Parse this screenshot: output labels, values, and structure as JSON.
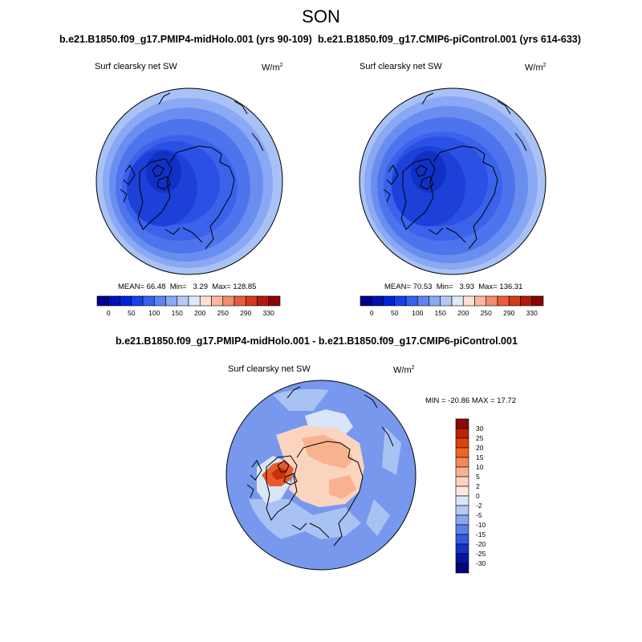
{
  "season": "SON",
  "panels": [
    {
      "run": "b.e21.B1850.f09_g17.PMIP4-midHolo.001 (yrs 90-109)",
      "variable": "Surf clearsky net SW",
      "units": "W/m",
      "units_exp": "2",
      "stats": {
        "mean_label": "MEAN=",
        "mean": "66.48",
        "min_label": "Min=",
        "min": "3.29",
        "max_label": "Max=",
        "max": "128.85"
      }
    },
    {
      "run": "b.e21.B1850.f09_g17.CMIP6-piControl.001 (yrs 614-633)",
      "variable": "Surf clearsky net SW",
      "units": "W/m",
      "units_exp": "2",
      "stats": {
        "mean_label": "MEAN=",
        "mean": "70.53",
        "min_label": "Min=",
        "min": "3.93",
        "max_label": "Max=",
        "max": "136.31"
      }
    }
  ],
  "abs_colorbar": {
    "labels": [
      "0",
      "50",
      "100",
      "150",
      "200",
      "250",
      "290",
      "330"
    ],
    "colors": [
      "#00008c",
      "#0010b4",
      "#0022d6",
      "#1640e8",
      "#3760f0",
      "#5e84f2",
      "#8aa8f4",
      "#b4c9f6",
      "#deeaf8",
      "#fde0d2",
      "#f9b8a0",
      "#f28c6c",
      "#e85e3c",
      "#d23a1c",
      "#b01c0c",
      "#8a0404"
    ]
  },
  "difference": {
    "title": "b.e21.B1850.f09_g17.PMIP4-midHolo.001 - b.e21.B1850.f09_g17.CMIP6-piControl.001",
    "variable": "Surf clearsky net SW",
    "units": "W/m",
    "units_exp": "2",
    "minmax": "MIN = -20.86  MAX =  17.72",
    "colorbar_labels": [
      "30",
      "25",
      "20",
      "15",
      "10",
      "5",
      "2",
      "0",
      "-2",
      "-5",
      "-10",
      "-15",
      "-20",
      "-25",
      "-30"
    ],
    "colorbar_colors": [
      "#8a0a04",
      "#bb2406",
      "#e0420c",
      "#f0642a",
      "#f48a5a",
      "#f8b28e",
      "#fbd4c0",
      "#fbe8de",
      "#d8e6f8",
      "#b2c9f4",
      "#86a6ee",
      "#5a80e8",
      "#3458e0",
      "#1632c4",
      "#06149a",
      "#020676"
    ]
  },
  "colors": {
    "polar_ring": [
      "#a8c2f6",
      "#8aa8f4",
      "#6a8ef0",
      "#4d74ec",
      "#3a62ea",
      "#2a50e4",
      "#1c40d8",
      "#1030c6"
    ],
    "diff_base": "#7898ee",
    "diff_light": "#a9c2f4",
    "diff_pale": "#d8e6f8",
    "diff_warm": "#fbd4c0",
    "diff_warm2": "#f8b28e",
    "diff_hot": "#e85a2a",
    "diff_hot2": "#c8320c"
  }
}
